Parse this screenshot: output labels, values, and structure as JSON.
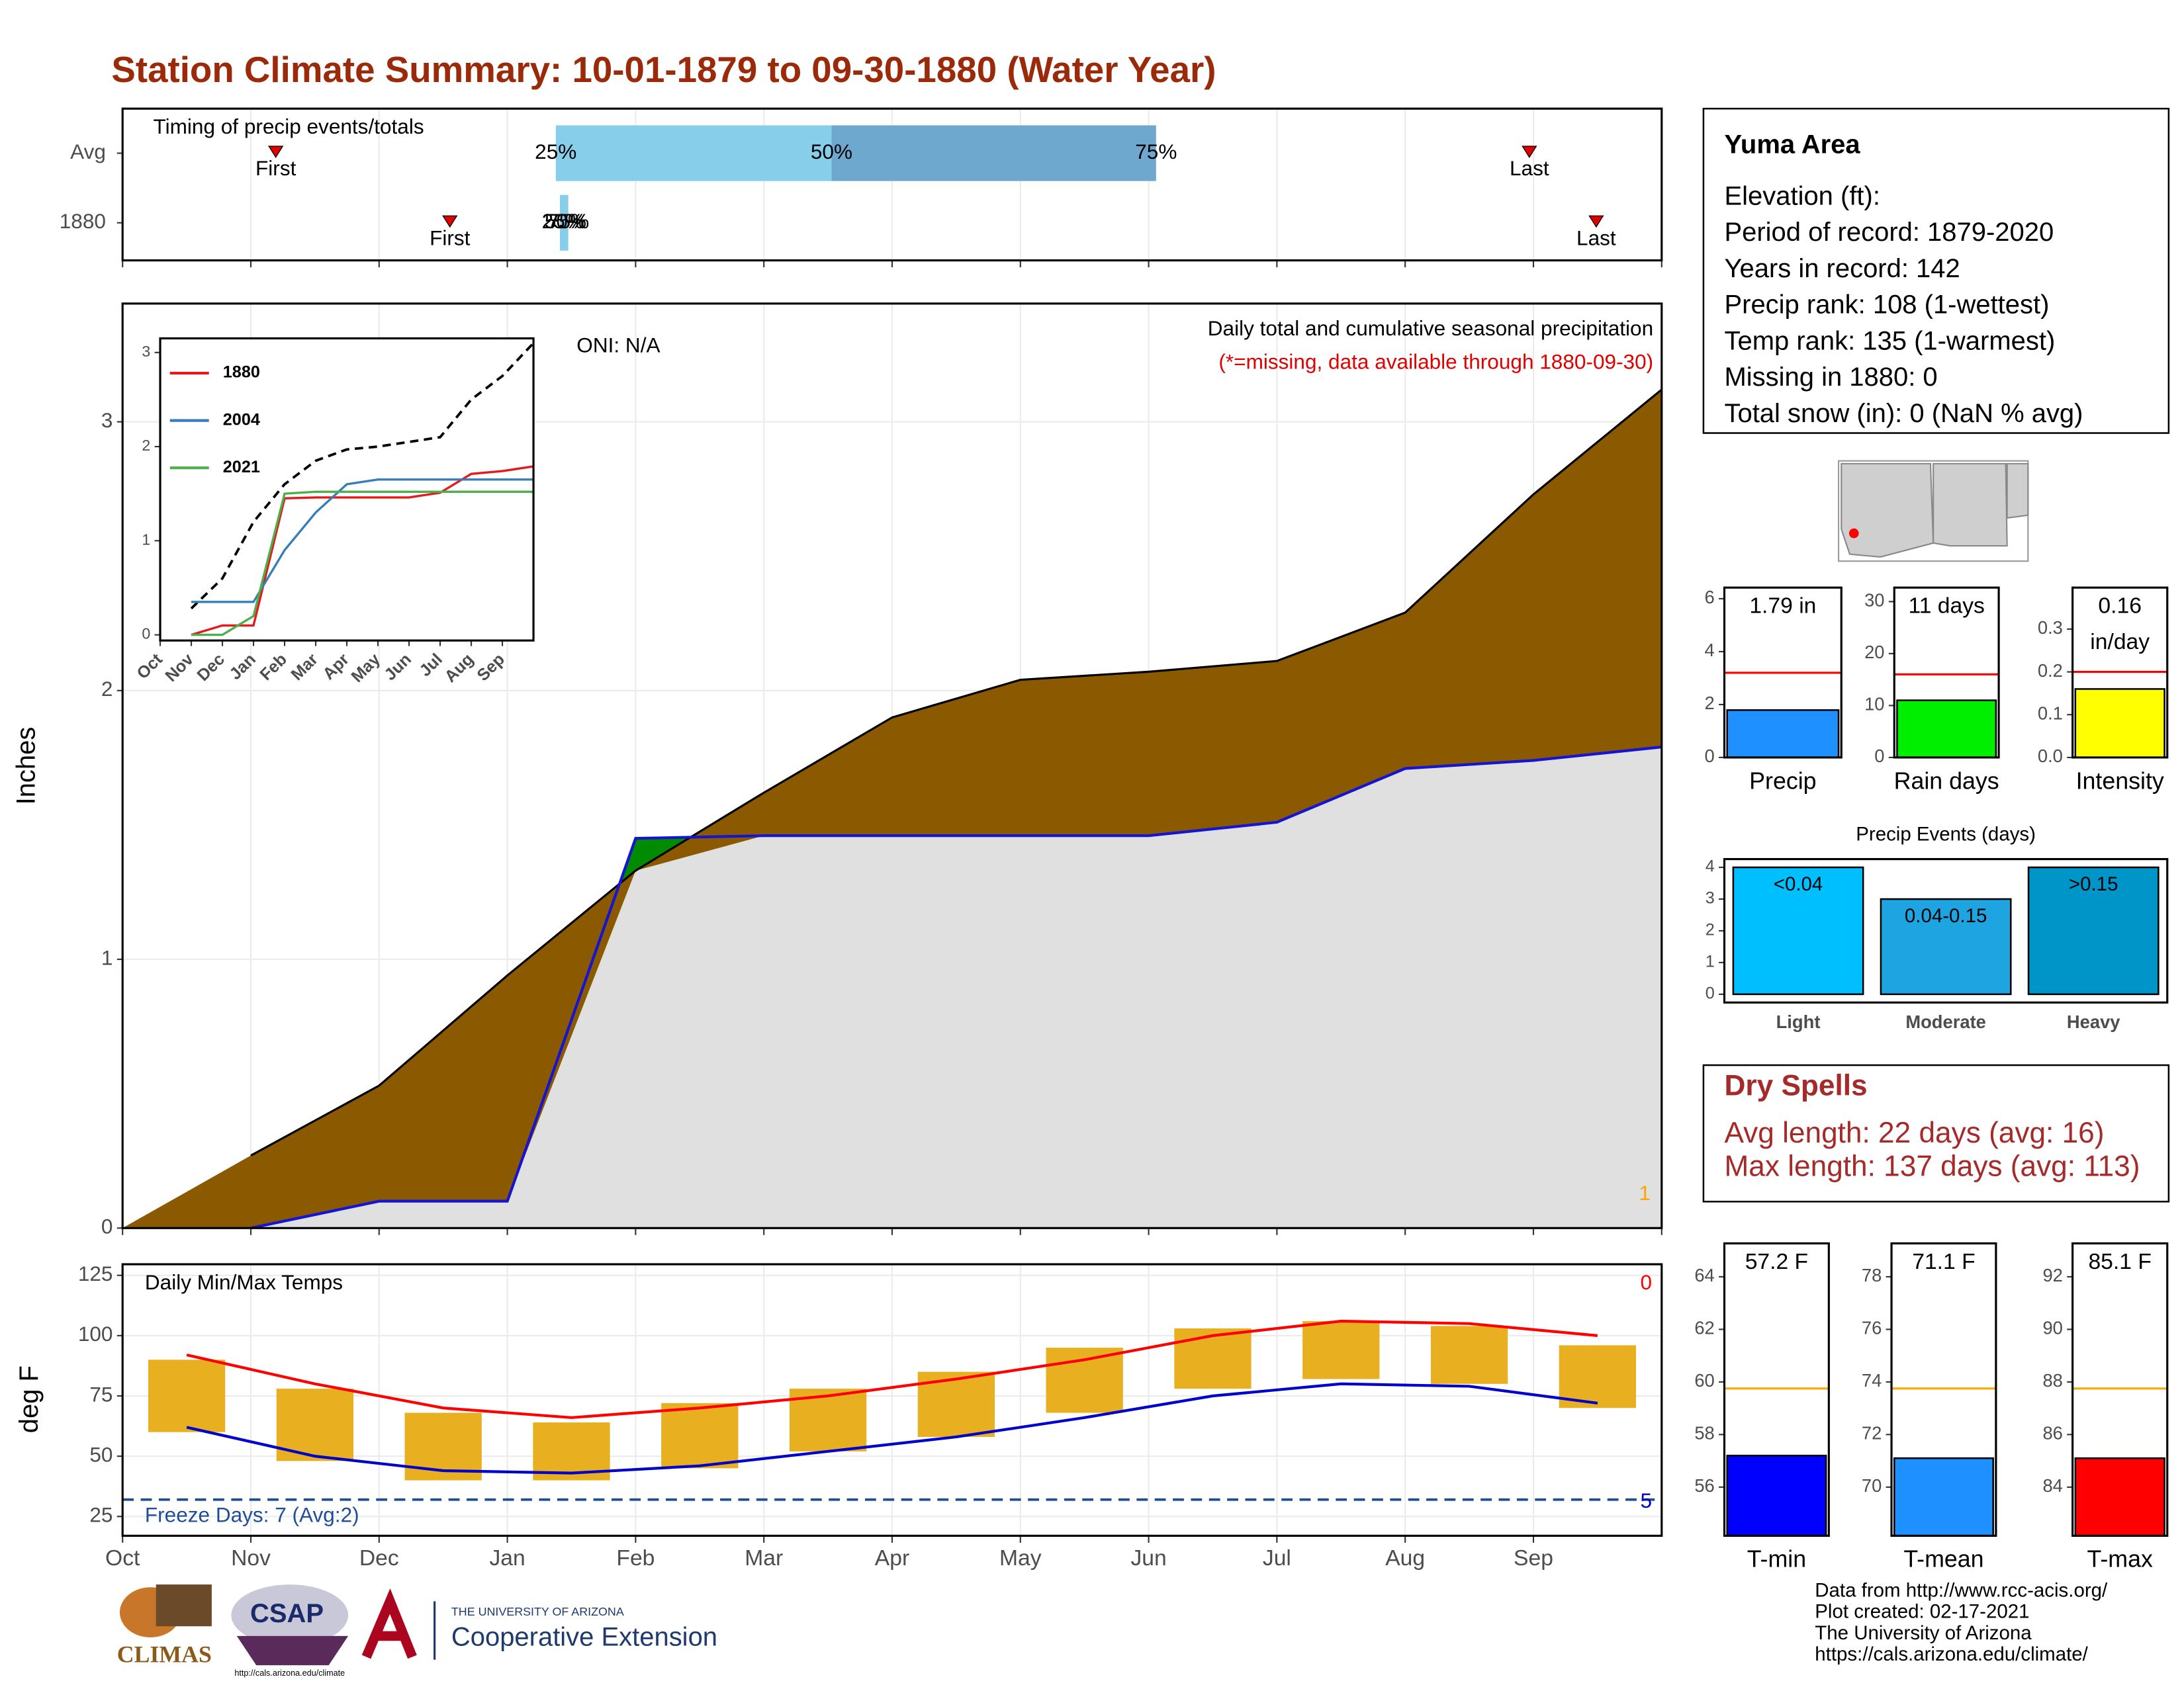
{
  "title": "Station Climate Summary: 10-01-1879 to 09-30-1880 (Water Year)",
  "timing": {
    "title": "Timing of precip events/totals",
    "rows": [
      {
        "label": "Avg",
        "first": "First",
        "last": "Last",
        "percentiles": [
          "25%",
          "50%",
          "75%"
        ]
      },
      {
        "label": "1880",
        "first": "First",
        "last": "Last",
        "percentiles": [
          "25%",
          "50%",
          "75%"
        ]
      }
    ]
  },
  "info_box": {
    "title": "Yuma Area",
    "lines": [
      "Elevation (ft):",
      "Period of record: 1879-2020",
      "Years in record: 142",
      "Precip rank: 108 (1-wettest)",
      "Temp rank: 135 (1-warmest)",
      "Missing in 1880: 0",
      "Total snow (in): 0 (NaN % avg)"
    ]
  },
  "dry_spells": {
    "title": "Dry Spells",
    "lines": [
      "Avg length: 22 days (avg: 16)",
      "Max length: 137 days (avg: 113)"
    ]
  },
  "footer": {
    "logos": [
      "CLIMAS",
      "CSAP",
      "http://cals.arizona.edu/climate",
      "THE UNIVERSITY OF ARIZONA",
      "Cooperative Extension"
    ],
    "credits": [
      "Data from http://www.rcc-acis.org/",
      "Plot created: 02-17-2021",
      "The University of Arizona",
      "https://cals.arizona.edu/climate/"
    ]
  },
  "chart_data": [
    {
      "type": "cumulative_area",
      "title": "Daily total and cumulative seasonal precipitation",
      "subtitle": "(*=missing, data available through 1880-09-30)",
      "annotation": "ONI: N/A",
      "corner_label": "1",
      "y_label": "Inches",
      "ylim": [
        0,
        3.44
      ],
      "yticks": [
        0,
        1,
        2,
        3
      ],
      "grid": true,
      "above_color": "#008b00",
      "below_color": "#e0e0e0",
      "series": [
        {
          "color": "#8b5a00",
          "values": [
            0.27,
            0.53,
            0.94,
            1.33,
            1.62,
            1.9,
            2.04,
            2.07,
            2.11,
            2.29,
            2.73,
            3.12
          ]
        },
        {
          "color": "#1414d2",
          "values": [
            0,
            0.1,
            0.1,
            1.45,
            1.46,
            1.46,
            1.46,
            1.46,
            1.51,
            1.71,
            1.74,
            1.79
          ]
        }
      ]
    },
    {
      "type": "line",
      "categories": [
        "Oct",
        "Nov",
        "Dec",
        "Jan",
        "Feb",
        "Mar",
        "Apr",
        "May",
        "Jun",
        "Jul",
        "Aug",
        "Sep"
      ],
      "ylim": [
        -0.06,
        3.15
      ],
      "yticks": [
        0,
        1,
        2,
        3
      ],
      "series": [
        {
          "color": "#000000",
          "dashed": true,
          "values": [
            0.28,
            0.6,
            1.2,
            1.6,
            1.85,
            1.97,
            2.0,
            2.05,
            2.1,
            2.5,
            2.75,
            3.1
          ]
        },
        {
          "name": "1880",
          "color": "#e41a1c",
          "values": [
            0,
            0.1,
            0.1,
            1.45,
            1.46,
            1.46,
            1.46,
            1.46,
            1.51,
            1.71,
            1.74,
            1.79
          ]
        },
        {
          "name": "2004",
          "color": "#377eb8",
          "values": [
            0.35,
            0.35,
            0.35,
            0.9,
            1.3,
            1.6,
            1.65,
            1.65,
            1.65,
            1.65,
            1.65,
            1.65
          ]
        },
        {
          "name": "2021",
          "color": "#4daf4a",
          "values": [
            0,
            0,
            0.2,
            1.5,
            1.52,
            1.52,
            1.52,
            1.52,
            1.52,
            1.52,
            1.52,
            1.52
          ]
        }
      ]
    },
    {
      "type": "temperature",
      "title": "Daily Min/Max Temps",
      "y_label": "deg F",
      "categories": [
        "Oct",
        "Nov",
        "Dec",
        "Jan",
        "Feb",
        "Mar",
        "Apr",
        "May",
        "Jun",
        "Jul",
        "Aug",
        "Sep"
      ],
      "ylim": [
        17,
        129.6
      ],
      "yticks": [
        25,
        50,
        75,
        100,
        125
      ],
      "grid": true,
      "bars": {
        "color": "#e8b020",
        "min": [
          60,
          48,
          40,
          40,
          45,
          52,
          58,
          68,
          78,
          82,
          80,
          70
        ],
        "max": [
          90,
          78,
          68,
          64,
          72,
          78,
          85,
          95,
          103,
          106,
          104,
          96
        ]
      },
      "series": [
        {
          "color": "#ff0000",
          "values": [
            92,
            80,
            70,
            66,
            70,
            75,
            82,
            90,
            100,
            106,
            105,
            100
          ]
        },
        {
          "color": "#0000cd",
          "values": [
            62,
            50,
            44,
            43,
            46,
            52,
            58,
            66,
            75,
            80,
            79,
            72
          ]
        }
      ],
      "freeze_line": {
        "value": 32,
        "color": "#1f4e99"
      },
      "annotations": [
        {
          "text": "0",
          "color": "#ff0000"
        },
        {
          "text": "Freeze Days: 7 (Avg:2)",
          "color": "#1f4e99"
        },
        {
          "text": "5",
          "color": "#0000cd"
        }
      ]
    },
    {
      "type": "single_bar",
      "category": "Precip",
      "value": 1.79,
      "value_label": "1.79 in",
      "avg": 3.2,
      "avg_color": "#ff0000",
      "color": "#1e90ff",
      "ylim": [
        0,
        6.42
      ],
      "yticks": [
        0,
        2,
        4,
        6
      ]
    },
    {
      "type": "single_bar",
      "category": "Rain days",
      "value": 11,
      "value_label": "11 days",
      "avg": 16,
      "avg_color": "#ff0000",
      "color": "#00ee00",
      "ylim": [
        0,
        32.7
      ],
      "yticks": [
        0,
        10,
        20,
        30
      ]
    },
    {
      "type": "single_bar",
      "category": "Intensity",
      "value": 0.16,
      "value_label": "0.16",
      "value_unit": "in/day",
      "avg": 0.2,
      "avg_color": "#ff0000",
      "color": "#ffff00",
      "ylim": [
        0,
        0.397
      ],
      "yticks": [
        {
          "value": 0,
          "label": "0.0"
        },
        0.1,
        0.2,
        0.3
      ]
    },
    {
      "type": "bar",
      "title": "Precip Events (days)",
      "categories": [
        "Light",
        "Moderate",
        "Heavy"
      ],
      "values": [
        4,
        3,
        4
      ],
      "bar_labels": [
        "<0.04",
        "0.04-0.15",
        ">0.15"
      ],
      "colors": [
        "#00bfff",
        "#1ea4e0",
        "#0095c8"
      ],
      "ylim": [
        -0.26,
        4.26
      ],
      "yticks": [
        0,
        1,
        2,
        3,
        4
      ]
    },
    {
      "type": "single_bar",
      "category": "T-min",
      "value": 57.2,
      "value_label": "57.2 F",
      "avg": 59.75,
      "avg_color": "#ffa500",
      "color": "#0000ff",
      "ylim": [
        54.15,
        65.27
      ],
      "yticks": [
        56,
        58,
        60,
        62,
        64
      ]
    },
    {
      "type": "single_bar",
      "category": "T-mean",
      "value": 71.1,
      "value_label": "71.1 F",
      "avg": 73.75,
      "avg_color": "#ffa500",
      "color": "#1e90ff",
      "ylim": [
        68.15,
        79.27
      ],
      "yticks": [
        70,
        72,
        74,
        76,
        78
      ]
    },
    {
      "type": "single_bar",
      "category": "T-max",
      "value": 85.1,
      "value_label": "85.1 F",
      "avg": 87.75,
      "avg_color": "#ffa500",
      "color": "#ff0000",
      "ylim": [
        82.15,
        93.27
      ],
      "yticks": [
        84,
        86,
        88,
        90,
        92
      ]
    }
  ]
}
